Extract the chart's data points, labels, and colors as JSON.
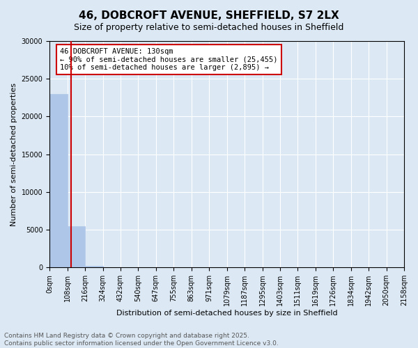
{
  "title": "46, DOBCROFT AVENUE, SHEFFIELD, S7 2LX",
  "subtitle": "Size of property relative to semi-detached houses in Sheffield",
  "xlabel": "Distribution of semi-detached houses by size in Sheffield",
  "ylabel": "Number of semi-detached properties",
  "footer_line1": "Contains HM Land Registry data © Crown copyright and database right 2025.",
  "footer_line2": "Contains public sector information licensed under the Open Government Licence v3.0.",
  "annotation_line1": "46 DOBCROFT AVENUE: 130sqm",
  "annotation_line2": "← 90% of semi-detached houses are smaller (25,455)",
  "annotation_line3": "10% of semi-detached houses are larger (2,895) →",
  "property_size_sqm": 130,
  "bin_edges": [
    0,
    108,
    216,
    324,
    432,
    540,
    647,
    755,
    863,
    971,
    1079,
    1187,
    1295,
    1403,
    1511,
    1619,
    1726,
    1834,
    1942,
    2050,
    2158
  ],
  "bin_labels": [
    "0sqm",
    "108sqm",
    "216sqm",
    "324sqm",
    "432sqm",
    "540sqm",
    "647sqm",
    "755sqm",
    "863sqm",
    "971sqm",
    "1079sqm",
    "1187sqm",
    "1295sqm",
    "1403sqm",
    "1511sqm",
    "1619sqm",
    "1726sqm",
    "1834sqm",
    "1942sqm",
    "2050sqm",
    "2158sqm"
  ],
  "bar_heights": [
    23000,
    5500,
    230,
    50,
    30,
    20,
    15,
    10,
    8,
    6,
    5,
    4,
    3,
    2,
    2,
    1,
    1,
    1,
    1,
    0
  ],
  "bar_color": "#aec6e8",
  "property_line_color": "#cc0000",
  "annotation_box_edgecolor": "#cc0000",
  "annotation_box_facecolor": "#ffffff",
  "background_color": "#dce9f5",
  "plot_background": "#dce9f5",
  "ylim": [
    0,
    30000
  ],
  "yticks": [
    0,
    5000,
    10000,
    15000,
    20000,
    25000,
    30000
  ],
  "grid_color": "#ffffff",
  "title_fontsize": 11,
  "subtitle_fontsize": 9,
  "axis_label_fontsize": 8,
  "tick_fontsize": 7,
  "annotation_fontsize": 7.5,
  "footer_fontsize": 6.5
}
